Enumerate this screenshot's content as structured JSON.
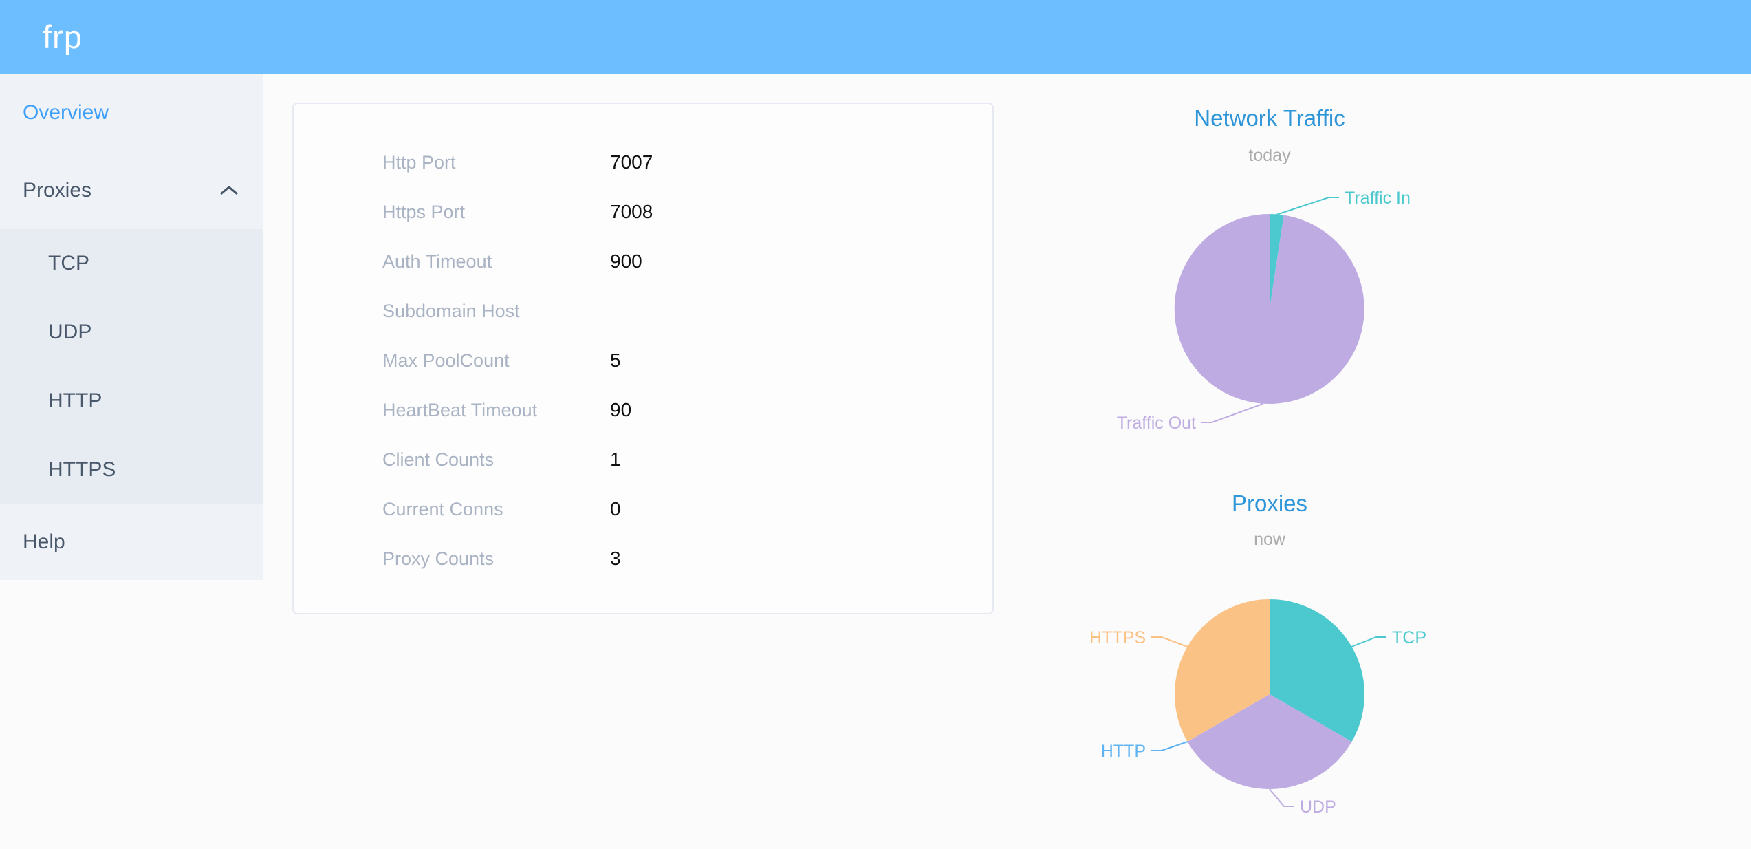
{
  "header": {
    "logo": "frp"
  },
  "sidebar": {
    "items": [
      {
        "label": "Overview",
        "active": true
      },
      {
        "label": "Proxies",
        "expanded": true,
        "children": [
          "TCP",
          "UDP",
          "HTTP",
          "HTTPS"
        ]
      },
      {
        "label": "Help"
      }
    ]
  },
  "overview_card": {
    "rows": [
      {
        "label": "Http Port",
        "value": "7007"
      },
      {
        "label": "Https Port",
        "value": "7008"
      },
      {
        "label": "Auth Timeout",
        "value": "900"
      },
      {
        "label": "Subdomain Host",
        "value": ""
      },
      {
        "label": "Max PoolCount",
        "value": "5"
      },
      {
        "label": "HeartBeat Timeout",
        "value": "90"
      },
      {
        "label": "Client Counts",
        "value": "1"
      },
      {
        "label": "Current Conns",
        "value": "0"
      },
      {
        "label": "Proxy Counts",
        "value": "3"
      }
    ]
  },
  "chart_data": [
    {
      "type": "pie",
      "title": "Network Traffic",
      "subtitle": "today",
      "legend_position": "callout-labels",
      "slices": [
        {
          "label": "Traffic In",
          "value": 2.4,
          "unit": "percent",
          "color": "#4CC9CE"
        },
        {
          "label": "Traffic Out",
          "value": 97.6,
          "unit": "percent",
          "color": "#BEABE2"
        }
      ]
    },
    {
      "type": "pie",
      "title": "Proxies",
      "subtitle": "now",
      "legend_position": "callout-labels",
      "slices": [
        {
          "label": "TCP",
          "value": 1,
          "color": "#4CC9CE"
        },
        {
          "label": "UDP",
          "value": 1,
          "color": "#BEABE2"
        },
        {
          "label": "HTTP",
          "value": 0,
          "color": "#5FB3F2"
        },
        {
          "label": "HTTPS",
          "value": 1,
          "color": "#FBC286"
        }
      ]
    }
  ],
  "colors": {
    "header_background": "#6CBEFF",
    "sidebar_background": "#EFF2F7",
    "submenu_background": "#E7EBF2",
    "sidebar_text": "#48576A",
    "sidebar_active": "#3D9FF7",
    "chart_title": "#2E95D8",
    "chart_subtitle": "#ABABAB",
    "card_label": "#A9B3C3"
  }
}
